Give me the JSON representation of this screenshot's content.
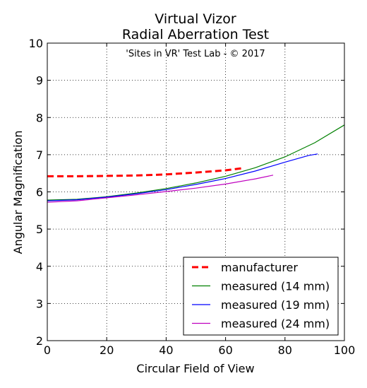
{
  "chart_data": {
    "type": "line",
    "title": "Virtual Vizor",
    "subtitle": "Radial Aberration Test",
    "annotation": "'Sites in VR' Test Lab - © 2017",
    "xlabel": "Circular Field of View",
    "ylabel": "Angular Magnification",
    "xlim": [
      0,
      100
    ],
    "ylim": [
      2,
      10
    ],
    "xticks": [
      "0",
      "20",
      "40",
      "60",
      "80",
      "100"
    ],
    "yticks": [
      "2",
      "3",
      "4",
      "5",
      "6",
      "7",
      "8",
      "9",
      "10"
    ],
    "grid": true,
    "legend_position": "lower right",
    "series": [
      {
        "name": "manufacturer",
        "color": "#ff0000",
        "style": "dashed",
        "x": [
          0,
          10,
          20,
          30,
          40,
          50,
          60,
          66
        ],
        "y": [
          6.42,
          6.42,
          6.43,
          6.44,
          6.47,
          6.52,
          6.58,
          6.64
        ]
      },
      {
        "name": "measured (14 mm)",
        "color": "#008000",
        "style": "solid",
        "x": [
          0,
          10,
          20,
          30,
          40,
          50,
          60,
          70,
          80,
          90,
          100
        ],
        "y": [
          5.78,
          5.8,
          5.87,
          5.97,
          6.09,
          6.24,
          6.42,
          6.65,
          6.94,
          7.32,
          7.8
        ]
      },
      {
        "name": "measured (19 mm)",
        "color": "#0000ff",
        "style": "solid",
        "x": [
          0,
          10,
          20,
          30,
          40,
          50,
          60,
          70,
          80,
          88,
          91
        ],
        "y": [
          5.76,
          5.79,
          5.86,
          5.95,
          6.06,
          6.2,
          6.36,
          6.56,
          6.8,
          6.98,
          7.02
        ]
      },
      {
        "name": "measured (24 mm)",
        "color": "#bf00bf",
        "style": "solid",
        "x": [
          0,
          10,
          20,
          30,
          40,
          50,
          60,
          70,
          76
        ],
        "y": [
          5.72,
          5.76,
          5.84,
          5.92,
          6.01,
          6.1,
          6.21,
          6.35,
          6.45
        ]
      }
    ]
  }
}
